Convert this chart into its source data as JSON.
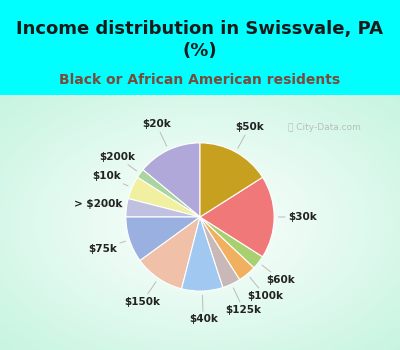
{
  "title": "Income distribution in Swissvale, PA\n(%)",
  "subtitle": "Black or African American residents",
  "watermark": "ⓘ City-Data.com",
  "background_fig": "#00ffff",
  "background_chart": "#dff5ec",
  "title_color": "#1a1a1a",
  "subtitle_color": "#7a4a3a",
  "labels": [
    "$20k",
    "$200k",
    "$10k",
    "> $200k",
    "$75k",
    "$150k",
    "$40k",
    "$125k",
    "$100k",
    "$60k",
    "$30k",
    "$50k"
  ],
  "values": [
    14,
    2,
    5,
    4,
    10,
    11,
    9,
    4,
    4,
    3,
    18,
    16
  ],
  "colors": [
    "#b0a8d8",
    "#aad4a0",
    "#f0f0a0",
    "#c0c0e0",
    "#9ab0e0",
    "#f0c0a8",
    "#a0c8f0",
    "#c8b8b8",
    "#f0b060",
    "#a8d070",
    "#f07878",
    "#c8a020"
  ],
  "title_fontsize": 13,
  "subtitle_fontsize": 10,
  "label_fontsize": 7.5,
  "startangle": 90
}
